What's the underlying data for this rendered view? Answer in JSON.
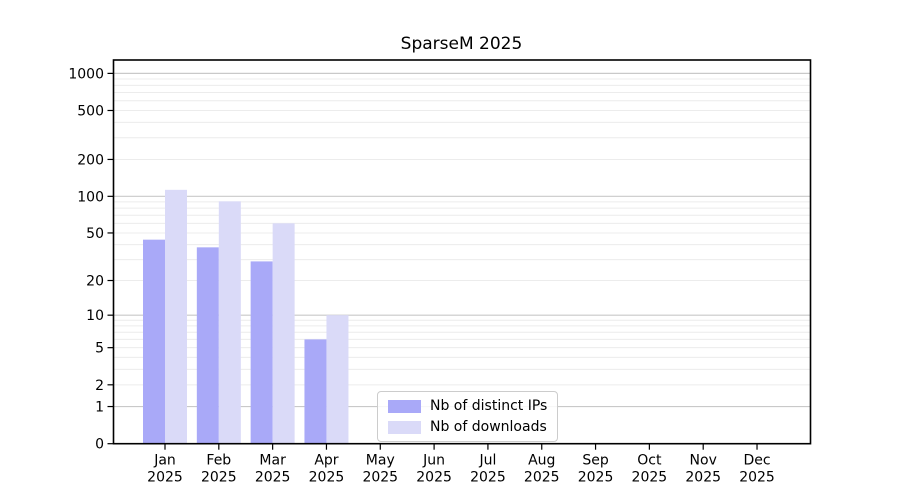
{
  "chart_data": {
    "type": "bar",
    "title": "SparseM 2025",
    "xlabel": "",
    "ylabel": "",
    "categories": [
      "Jan",
      "Feb",
      "Mar",
      "Apr",
      "May",
      "Jun",
      "Jul",
      "Aug",
      "Sep",
      "Oct",
      "Nov",
      "Dec"
    ],
    "year": "2025",
    "series": [
      {
        "name": "Nb of distinct IPs",
        "color": "#a9a9f8",
        "values": [
          44,
          38,
          29,
          6,
          0,
          0,
          0,
          0,
          0,
          0,
          0,
          0
        ]
      },
      {
        "name": "Nb of downloads",
        "color": "#dadaf8",
        "values": [
          113,
          91,
          60,
          10,
          0,
          0,
          0,
          0,
          0,
          0,
          0,
          0
        ]
      }
    ],
    "yscale": "log1p",
    "y_ticks": [
      0,
      1,
      2,
      5,
      10,
      20,
      50,
      100,
      200,
      500,
      1000
    ],
    "ylim": [
      0,
      1285
    ],
    "grid": "on",
    "gridline_major_values": [
      1,
      10,
      100,
      1000
    ],
    "legend_position": "inside lower-center-left",
    "colors": {
      "major_grid": "#c9c9c9",
      "minor_grid": "#ececec",
      "spine": "#000000",
      "text": "#000000",
      "background": "#ffffff"
    }
  }
}
